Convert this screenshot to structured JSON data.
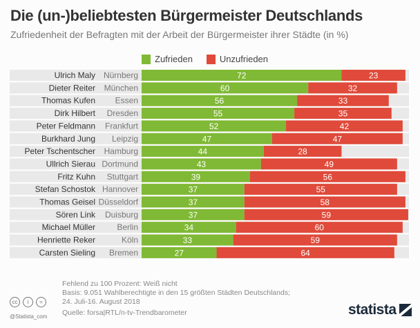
{
  "chart_data": {
    "type": "bar",
    "stacked": true,
    "orientation": "horizontal",
    "title": "Die (un-)beliebtesten Bürgermeister Deutschlands",
    "subtitle": "Zufriedenheit der Befragten mit der Arbeit der Bürgermeister ihrer Städte (in %)",
    "legend_position": "top",
    "names": [
      "Ulrich Maly",
      "Dieter Reiter",
      "Thomas Kufen",
      "Dirk Hilbert",
      "Peter Feldmann",
      "Burkhard Jung",
      "Peter Tschentscher",
      "Ullrich Sierau",
      "Fritz Kuhn",
      "Stefan Schostok",
      "Thomas Geisel",
      "Sören Link",
      "Michael Müller",
      "Henriette Reker",
      "Carsten Sieling"
    ],
    "categories": [
      "Nürnberg",
      "München",
      "Essen",
      "Dresden",
      "Frankfurt",
      "Leipzig",
      "Hamburg",
      "Dortmund",
      "Stuttgart",
      "Hannover",
      "Düsseldorf",
      "Duisburg",
      "Berlin",
      "Köln",
      "Bremen"
    ],
    "series": [
      {
        "name": "Zufrieden",
        "color": "#80b935",
        "values": [
          72,
          60,
          56,
          55,
          52,
          47,
          44,
          43,
          39,
          37,
          37,
          37,
          34,
          33,
          27
        ]
      },
      {
        "name": "Unzufrieden",
        "color": "#e04a3a",
        "values": [
          23,
          32,
          33,
          35,
          42,
          47,
          28,
          49,
          56,
          55,
          58,
          59,
          60,
          59,
          64
        ]
      }
    ]
  },
  "footer": {
    "note1": "Fehlend zu 100 Prozent: Weiß nicht",
    "note2": "Basis: 9.051 Wahlberechtigte in den 15 größten Städten Deutschlands;",
    "note3": "24. Juli-16. August 2018",
    "source": "Quelle: forsa|RTL/n-tv-Trendbarometer",
    "handle": "@Statista_com",
    "logo": "statista"
  }
}
